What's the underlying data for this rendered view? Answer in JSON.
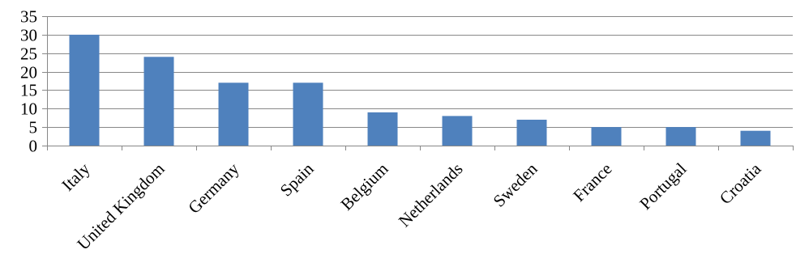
{
  "chart_data": {
    "type": "bar",
    "categories": [
      "Italy",
      "United Kingdom",
      "Germany",
      "Spain",
      "Belgium",
      "Netherlands",
      "Sweden",
      "France",
      "Portugal",
      "Croatia"
    ],
    "values": [
      30,
      24,
      17,
      17,
      9,
      8,
      7,
      5,
      5,
      4
    ],
    "title": "",
    "xlabel": "",
    "ylabel": "",
    "ylim": [
      0,
      35
    ],
    "yticks": [
      0,
      5,
      10,
      15,
      20,
      25,
      30,
      35
    ],
    "grid": true,
    "legend": "none",
    "bar_color": "#4f81bd"
  }
}
